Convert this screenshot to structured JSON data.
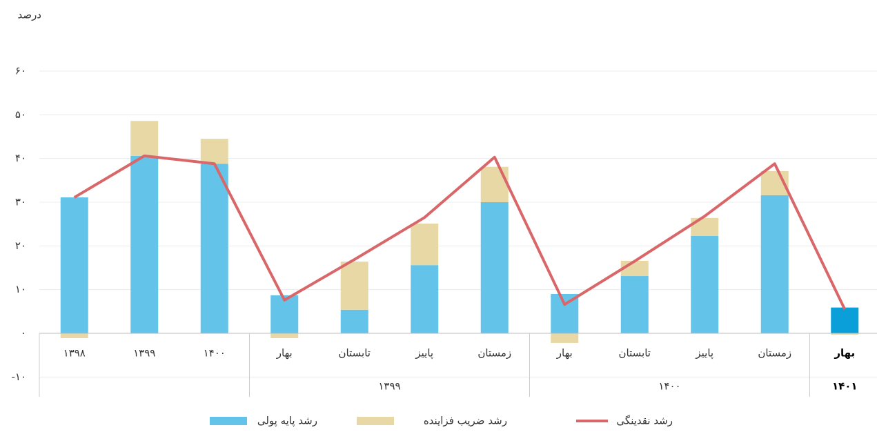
{
  "chart_data": {
    "type": "stacked-bar-line",
    "y_axis_label": "درصد",
    "categories": [
      "۱۳۹۸",
      "۱۳۹۹",
      "۱۴۰۰",
      "بهار",
      "تابستان",
      "پاییز",
      "زمستان",
      "بهار",
      "تابستان",
      "پاییز",
      "زمستان",
      "بهار"
    ],
    "groups": [
      {
        "label": "۱۳۹۹",
        "start": 3,
        "end": 6
      },
      {
        "label": "۱۴۰۰",
        "start": 7,
        "end": 10
      },
      {
        "label": "۱۴۰۱",
        "start": 11,
        "end": 11
      }
    ],
    "highlight": {
      "index": 11,
      "color": "#0a9fd8"
    },
    "series": [
      {
        "name": "رشد پایه پولی",
        "kind": "bar",
        "color": "#63c3e8",
        "values": [
          31.1,
          40.6,
          38.8,
          8.7,
          5.4,
          15.6,
          30,
          9,
          13.1,
          22.3,
          31.6,
          5.9
        ]
      },
      {
        "name": "رشد ضریب فزاینده",
        "kind": "bar",
        "color": "#e7d8a6",
        "values": [
          -1.1,
          8,
          5.7,
          -1.1,
          11,
          9.5,
          8.1,
          -2.2,
          3.5,
          4.1,
          5.5,
          -0.3
        ]
      },
      {
        "name": "رشد نقدینگی",
        "kind": "line",
        "color": "#d9676a",
        "values": [
          31.1,
          40.6,
          38.8,
          7.6,
          16.9,
          26.5,
          40.3,
          6.6,
          16.5,
          26.8,
          38.8,
          5.5
        ]
      }
    ],
    "ylim": [
      -15,
      75
    ],
    "yticks": [
      {
        "value": -10,
        "label": "-۱۰"
      },
      {
        "value": 0,
        "label": "۰"
      },
      {
        "value": 10,
        "label": "۱۰"
      },
      {
        "value": 20,
        "label": "۲۰"
      },
      {
        "value": 30,
        "label": "۳۰"
      },
      {
        "value": 40,
        "label": "۴۰"
      },
      {
        "value": 50,
        "label": "۵۰"
      },
      {
        "value": 60,
        "label": "۶۰"
      }
    ],
    "grid": true
  }
}
